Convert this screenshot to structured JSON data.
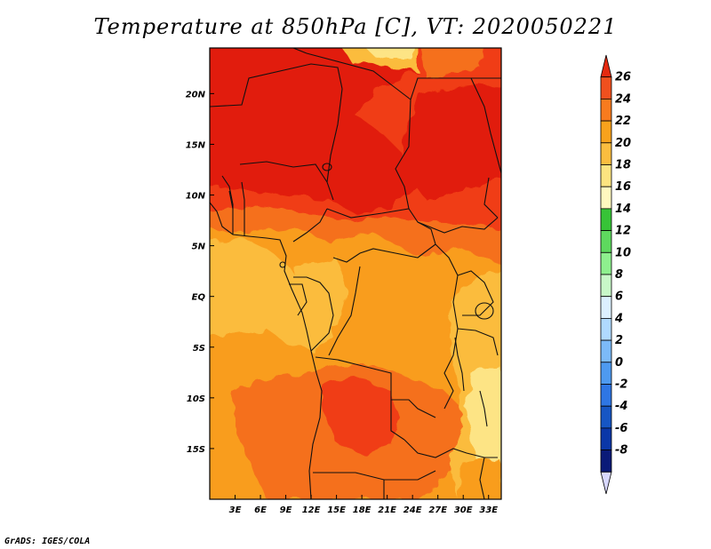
{
  "title": "Temperature at 850hPa [C], VT: 2020050221",
  "credit": "GrADS: IGES/COLA",
  "map": {
    "lon_range": [
      0,
      34.5
    ],
    "lat_range": [
      -20,
      24.5
    ],
    "lon_ticks": [
      {
        "value": 3,
        "label": "3E"
      },
      {
        "value": 6,
        "label": "6E"
      },
      {
        "value": 9,
        "label": "9E"
      },
      {
        "value": 12,
        "label": "12E"
      },
      {
        "value": 15,
        "label": "15E"
      },
      {
        "value": 18,
        "label": "18E"
      },
      {
        "value": 21,
        "label": "21E"
      },
      {
        "value": 24,
        "label": "24E"
      },
      {
        "value": 27,
        "label": "27E"
      },
      {
        "value": 30,
        "label": "30E"
      },
      {
        "value": 33,
        "label": "33E"
      }
    ],
    "lat_ticks": [
      {
        "value": 20,
        "label": "20N"
      },
      {
        "value": 15,
        "label": "15N"
      },
      {
        "value": 10,
        "label": "10N"
      },
      {
        "value": 5,
        "label": "5N"
      },
      {
        "value": 0,
        "label": "EQ"
      },
      {
        "value": -5,
        "label": "5S"
      },
      {
        "value": -10,
        "label": "10S"
      },
      {
        "value": -15,
        "label": "15S"
      }
    ]
  },
  "colorbar": {
    "levels": [
      {
        "label": "26"
      },
      {
        "label": "24"
      },
      {
        "label": "22"
      },
      {
        "label": "20"
      },
      {
        "label": "18"
      },
      {
        "label": "16"
      },
      {
        "label": "14"
      },
      {
        "label": "12"
      },
      {
        "label": "10"
      },
      {
        "label": "8"
      },
      {
        "label": "6"
      },
      {
        "label": "4"
      },
      {
        "label": "2"
      },
      {
        "label": "0"
      },
      {
        "label": "-2"
      },
      {
        "label": "-4"
      },
      {
        "label": "-6"
      },
      {
        "label": "-8"
      }
    ],
    "colors_top_to_bottom": [
      "#e42a10",
      "#f0501e",
      "#f87b1e",
      "#f9a21c",
      "#fbbd3f",
      "#fde480",
      "#fff8bf",
      "#37c437",
      "#5ed95e",
      "#8ef08e",
      "#c8f8c8",
      "#dcf0ff",
      "#b0daff",
      "#7cbaf8",
      "#4e9af0",
      "#2e76e4",
      "#1656c4",
      "#0a37a8",
      "#0a1a78",
      "#d8d8ff"
    ]
  },
  "field_colors": {
    "c26": "#e11c08",
    "c24": "#f03e14",
    "c22": "#f5701c",
    "c20": "#f99d1d",
    "c18": "#fbbc3e",
    "c16": "#fde485"
  }
}
